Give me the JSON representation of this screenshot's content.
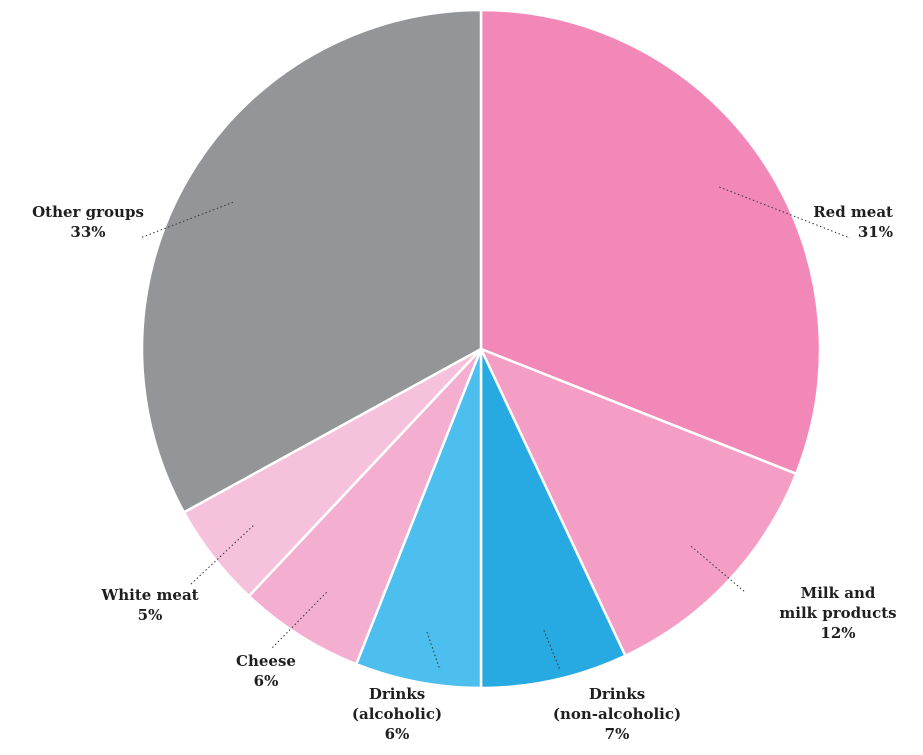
{
  "chart_data": {
    "type": "pie",
    "title": "",
    "slices": [
      {
        "id": "red-meat",
        "lines": [
          "Red meat"
        ],
        "value": 31,
        "pct": "31%",
        "color": "#f288b7"
      },
      {
        "id": "milk",
        "lines": [
          "Milk and",
          "milk products"
        ],
        "value": 12,
        "pct": "12%",
        "color": "#f49ec6"
      },
      {
        "id": "drinks-non-alcoholic",
        "lines": [
          "Drinks",
          "(non-alcoholic)"
        ],
        "value": 7,
        "pct": "7%",
        "color": "#27a9e1"
      },
      {
        "id": "drinks-alcoholic",
        "lines": [
          "Drinks",
          "(alcoholic)"
        ],
        "value": 6,
        "pct": "6%",
        "color": "#4cbfee"
      },
      {
        "id": "cheese",
        "lines": [
          "Cheese"
        ],
        "value": 6,
        "pct": "6%",
        "color": "#f3aed0"
      },
      {
        "id": "white-meat",
        "lines": [
          "White meat"
        ],
        "value": 5,
        "pct": "5%",
        "color": "#f6c1da"
      },
      {
        "id": "other-groups",
        "lines": [
          "Other groups"
        ],
        "value": 33,
        "pct": "33%",
        "color": "#949598"
      }
    ]
  }
}
